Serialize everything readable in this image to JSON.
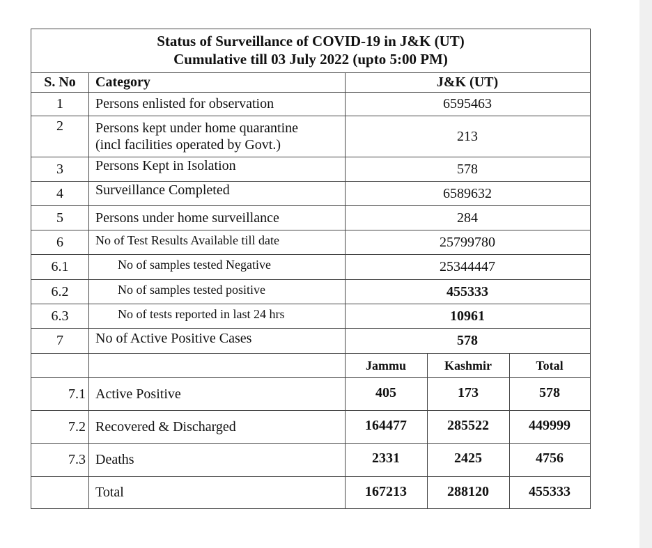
{
  "title": {
    "line1": "Status of Surveillance of COVID-19 in J&K (UT)",
    "line2": "Cumulative till 03 July 2022 (upto 5:00 PM)"
  },
  "headers": {
    "sno": "S. No",
    "category": "Category",
    "value": "J&K (UT)"
  },
  "rows": [
    {
      "sno": "1",
      "category": "Persons enlisted for observation",
      "value": "6595463"
    },
    {
      "sno": "2",
      "category_line1": "Persons kept under home quarantine",
      "category_line2": "(incl facilities operated by Govt.)",
      "value": "213"
    },
    {
      "sno": "3",
      "category": "Persons Kept in Isolation",
      "value": "578"
    },
    {
      "sno": "4",
      "category": "Surveillance  Completed",
      "value": "6589632"
    },
    {
      "sno": "5",
      "category": "Persons under home surveillance",
      "value": "284"
    },
    {
      "sno": "6",
      "category": "No of Test Results Available till date",
      "value": "25799780"
    },
    {
      "sno": "6.1",
      "category": "No of samples tested Negative",
      "value": "25344447"
    },
    {
      "sno": "6.2",
      "category": "No of samples tested positive",
      "value": "455333"
    },
    {
      "sno": "6.3",
      "category": "No of tests reported in last 24 hrs",
      "value": "10961"
    },
    {
      "sno": "7",
      "category": "No of Active Positive Cases",
      "value": "578"
    }
  ],
  "split_headers": {
    "jammu": "Jammu",
    "kashmir": "Kashmir",
    "total": "Total"
  },
  "split_rows": [
    {
      "sno": "7.1",
      "category": "Active Positive",
      "jammu": "405",
      "kashmir": "173",
      "total": "578"
    },
    {
      "sno": "7.2",
      "category": "Recovered & Discharged",
      "jammu": "164477",
      "kashmir": "285522",
      "total": "449999"
    },
    {
      "sno": "7.3",
      "category": "Deaths",
      "jammu": "2331",
      "kashmir": "2425",
      "total": "4756"
    },
    {
      "sno": "",
      "category": "Total",
      "jammu": "167213",
      "kashmir": "288120",
      "total": "455333"
    }
  ]
}
